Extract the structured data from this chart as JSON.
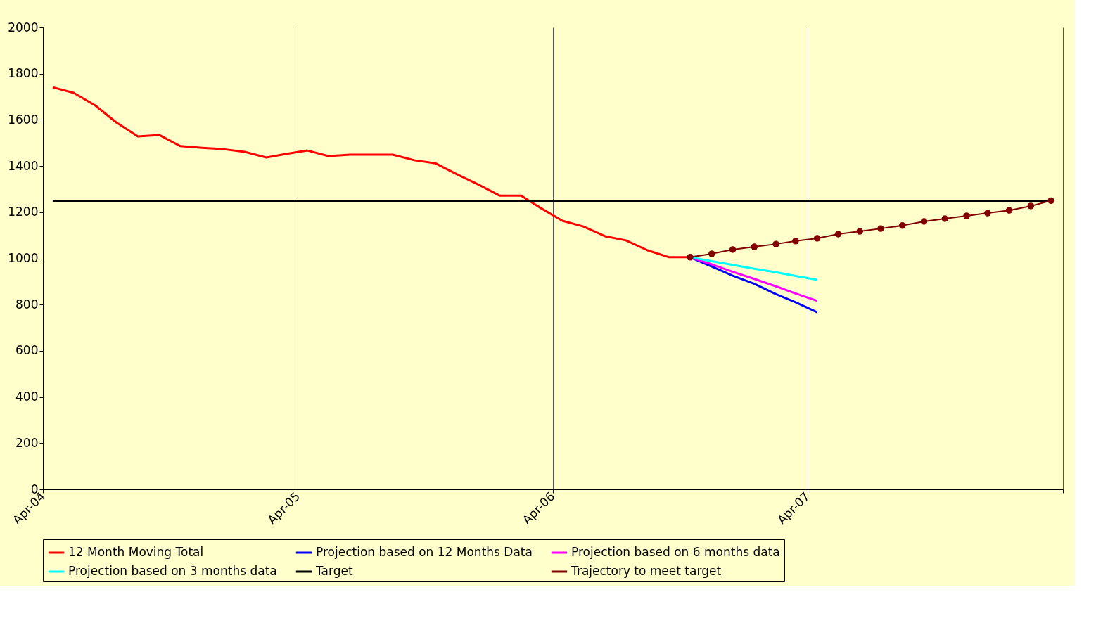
{
  "chart_data": {
    "type": "line",
    "xlim": [
      "2004-04-01",
      "2008-04-01"
    ],
    "xticks": [
      {
        "value": "2004-04-01",
        "label": "Apr-04"
      },
      {
        "value": "2005-04-01",
        "label": "Apr-05"
      },
      {
        "value": "2006-04-01",
        "label": "Apr-06"
      },
      {
        "value": "2007-04-01",
        "label": "Apr-07"
      },
      {
        "value": "2008-04-01",
        "label": null
      }
    ],
    "ylim": [
      0,
      2000
    ],
    "yticks": [
      0,
      200,
      400,
      600,
      800,
      1000,
      1200,
      1400,
      1600,
      1800,
      2000
    ],
    "grid": "x",
    "legend": "bottom",
    "line_style": "solid",
    "series": [
      {
        "name": "12 Month Moving Total",
        "color": "#ff0000",
        "marker": "none",
        "x": [
          "2004-04-15",
          "2004-05-15",
          "2004-06-15",
          "2004-07-15",
          "2004-08-15",
          "2004-09-15",
          "2004-10-15",
          "2004-11-15",
          "2004-12-15",
          "2005-01-15",
          "2005-02-15",
          "2005-03-15",
          "2005-04-15",
          "2005-05-15",
          "2005-06-15",
          "2005-07-15",
          "2005-08-15",
          "2005-09-15",
          "2005-10-15",
          "2005-11-15",
          "2005-12-15",
          "2006-01-15",
          "2006-02-15",
          "2006-03-15",
          "2006-04-15",
          "2006-05-15",
          "2006-06-15",
          "2006-07-15",
          "2006-08-15",
          "2006-09-15",
          "2006-10-15"
        ],
        "values": [
          1741,
          1717,
          1662,
          1589,
          1528,
          1534,
          1486,
          1479,
          1473,
          1461,
          1437,
          1452,
          1467,
          1443,
          1449,
          1449,
          1449,
          1425,
          1412,
          1364,
          1321,
          1272,
          1272,
          1218,
          1163,
          1138,
          1096,
          1078,
          1035,
          1005,
          1005
        ]
      },
      {
        "name": "Projection based on 12 Months Data",
        "color": "#0000ff",
        "marker": "none",
        "x": [
          "2006-10-15",
          "2006-11-15",
          "2006-12-15",
          "2007-01-15",
          "2007-02-15",
          "2007-03-15",
          "2007-04-15"
        ],
        "values": [
          1005,
          965,
          925,
          890,
          845,
          810,
          767
        ]
      },
      {
        "name": "Projection based on 6 months data",
        "color": "#ff00ff",
        "marker": "none",
        "x": [
          "2006-10-15",
          "2006-11-15",
          "2006-12-15",
          "2007-01-15",
          "2007-02-15",
          "2007-03-15",
          "2007-04-15"
        ],
        "values": [
          1005,
          974,
          942,
          911,
          879,
          848,
          816
        ]
      },
      {
        "name": "Projection based on 3 months data",
        "color": "#00ffff",
        "marker": "none",
        "x": [
          "2006-10-15",
          "2006-11-15",
          "2006-12-15",
          "2007-01-15",
          "2007-02-15",
          "2007-03-15",
          "2007-04-15"
        ],
        "values": [
          1005,
          988,
          972,
          955,
          940,
          924,
          907
        ]
      },
      {
        "name": "Target",
        "color": "#000000",
        "marker": "none",
        "x": [
          "2004-04-15",
          "2008-03-15"
        ],
        "values": [
          1250,
          1250
        ]
      },
      {
        "name": "Trajectory to meet target",
        "color": "#800000",
        "marker": "circle",
        "x": [
          "2006-10-15",
          "2006-11-15",
          "2006-12-15",
          "2007-01-15",
          "2007-02-15",
          "2007-03-15",
          "2007-04-15",
          "2007-05-15",
          "2007-06-15",
          "2007-07-15",
          "2007-08-15",
          "2007-09-15",
          "2007-10-15",
          "2007-11-15",
          "2007-12-15",
          "2008-01-15",
          "2008-02-15",
          "2008-03-15"
        ],
        "values": [
          1005,
          1020,
          1038,
          1050,
          1062,
          1075,
          1087,
          1105,
          1117,
          1129,
          1142,
          1160,
          1172,
          1184,
          1196,
          1208,
          1227,
          1250
        ]
      }
    ]
  }
}
